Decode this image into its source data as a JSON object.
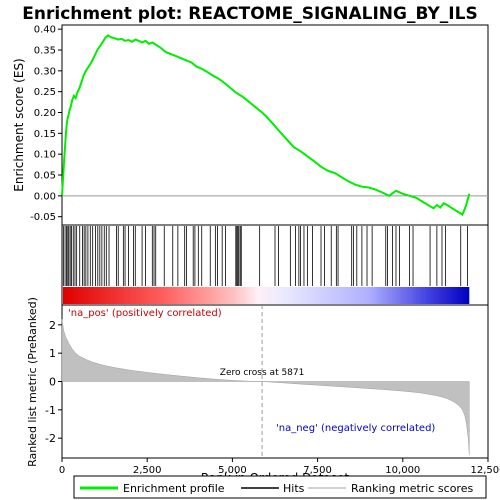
{
  "chart_data": {
    "type": "line",
    "title": "Enrichment plot: REACTOME_SIGNALING_BY_ILS",
    "xlabel": "Rank in Ordered Dataset",
    "ylabel_top": "Enrichment score (ES)",
    "ylabel_bottom": "Ranked list metric (PreRanked)",
    "xlim": [
      0,
      12500
    ],
    "x_ticks": [
      0,
      2500,
      5000,
      7500,
      10000,
      12500
    ],
    "x_tick_labels": [
      "0",
      "2,500",
      "5,000",
      "7,500",
      "10,000",
      "12,500"
    ],
    "es_ylim": [
      -0.07,
      0.41
    ],
    "es_ticks": [
      -0.05,
      0.0,
      0.05,
      0.1,
      0.15,
      0.2,
      0.25,
      0.3,
      0.35,
      0.4
    ],
    "es_tick_labels": [
      "-0.05",
      "0.00",
      "0.05",
      "0.10",
      "0.15",
      "0.20",
      "0.25",
      "0.30",
      "0.35",
      "0.40"
    ],
    "metric_ylim": [
      -2.7,
      2.7
    ],
    "metric_ticks": [
      -2,
      -1,
      0,
      1,
      2
    ],
    "metric_tick_labels": [
      "-2",
      "-1",
      "0",
      "1",
      "2"
    ],
    "es_color": "#00ff00",
    "series": [
      {
        "name": "Enrichment profile",
        "x": [
          0,
          30,
          60,
          90,
          120,
          150,
          180,
          220,
          260,
          300,
          350,
          400,
          460,
          520,
          580,
          640,
          700,
          780,
          860,
          950,
          1040,
          1120,
          1200,
          1280,
          1350,
          1450,
          1550,
          1650,
          1750,
          1850,
          1950,
          2050,
          2150,
          2250,
          2350,
          2450,
          2550,
          2650,
          2750,
          2900,
          3050,
          3200,
          3350,
          3500,
          3650,
          3800,
          3950,
          4100,
          4250,
          4400,
          4550,
          4700,
          4850,
          5000,
          5100,
          5200,
          5300,
          5450,
          5600,
          5750,
          5871,
          6000,
          6200,
          6400,
          6600,
          6800,
          7000,
          7200,
          7400,
          7600,
          7800,
          8000,
          8200,
          8400,
          8600,
          8800,
          9000,
          9200,
          9400,
          9600,
          9800,
          10000,
          10200,
          10400,
          10600,
          10800,
          10900,
          11000,
          11100,
          11200,
          11300,
          11450,
          11550,
          11650,
          11750,
          11850,
          11950
        ],
        "y": [
          0.0,
          0.04,
          0.08,
          0.12,
          0.155,
          0.18,
          0.19,
          0.205,
          0.215,
          0.23,
          0.24,
          0.235,
          0.25,
          0.26,
          0.275,
          0.29,
          0.3,
          0.31,
          0.32,
          0.335,
          0.35,
          0.36,
          0.37,
          0.38,
          0.385,
          0.38,
          0.378,
          0.375,
          0.377,
          0.372,
          0.374,
          0.37,
          0.375,
          0.372,
          0.368,
          0.372,
          0.365,
          0.368,
          0.363,
          0.355,
          0.345,
          0.34,
          0.335,
          0.33,
          0.325,
          0.32,
          0.31,
          0.305,
          0.298,
          0.29,
          0.283,
          0.275,
          0.265,
          0.255,
          0.248,
          0.243,
          0.238,
          0.228,
          0.218,
          0.208,
          0.2,
          0.19,
          0.172,
          0.153,
          0.135,
          0.117,
          0.107,
          0.095,
          0.083,
          0.07,
          0.06,
          0.055,
          0.045,
          0.035,
          0.027,
          0.022,
          0.02,
          0.015,
          0.008,
          0.0,
          0.012,
          0.005,
          0.0,
          -0.005,
          -0.015,
          -0.025,
          -0.03,
          -0.022,
          -0.028,
          -0.018,
          -0.022,
          -0.03,
          -0.035,
          -0.04,
          -0.045,
          -0.025,
          0.005
        ]
      }
    ],
    "hits": [
      40,
      90,
      130,
      170,
      200,
      240,
      280,
      330,
      380,
      430,
      520,
      600,
      650,
      700,
      760,
      830,
      900,
      980,
      1050,
      1110,
      1170,
      1240,
      1300,
      1380,
      1600,
      1650,
      1800,
      1850,
      1950,
      2100,
      2150,
      2350,
      2450,
      2650,
      2700,
      2750,
      3000,
      3250,
      3400,
      3600,
      3650,
      3850,
      3900,
      4000,
      4100,
      4350,
      4500,
      4560,
      4700,
      4800,
      5100,
      5130,
      5160,
      5190,
      5230,
      5260,
      5800,
      6250,
      6350,
      6700,
      6850,
      6950,
      7000,
      7100,
      7200,
      7350,
      7600,
      7700,
      7900,
      8050,
      8100,
      8500,
      8550,
      8650,
      8800,
      8950,
      9100,
      9500,
      9550,
      9700,
      9800,
      9900,
      10200,
      10300,
      10800,
      11000,
      11150,
      11250,
      11700,
      11900
    ],
    "zero_cross_label": "Zero cross at 5871",
    "zero_cross": 5871,
    "pos_label": "'na_pos' (positively correlated)",
    "neg_label": "'na_neg' (negatively correlated)",
    "metric": {
      "x": [
        0,
        50,
        100,
        200,
        300,
        400,
        500,
        700,
        900,
        1200,
        1500,
        2000,
        2500,
        3000,
        3500,
        4000,
        4500,
        5000,
        5500,
        5871,
        6500,
        7000,
        7500,
        8000,
        8500,
        9000,
        9500,
        10000,
        10500,
        11000,
        11300,
        11500,
        11650,
        11750,
        11820,
        11870,
        11920,
        11950
      ],
      "y": [
        2.2,
        1.8,
        1.6,
        1.35,
        1.15,
        1.0,
        0.9,
        0.78,
        0.68,
        0.58,
        0.5,
        0.4,
        0.32,
        0.25,
        0.19,
        0.13,
        0.08,
        0.04,
        0.01,
        0.0,
        -0.05,
        -0.09,
        -0.13,
        -0.17,
        -0.21,
        -0.25,
        -0.29,
        -0.34,
        -0.4,
        -0.5,
        -0.6,
        -0.72,
        -0.85,
        -1.0,
        -1.2,
        -1.5,
        -2.0,
        -2.6
      ]
    },
    "legend": [
      {
        "label": "Enrichment profile",
        "color": "#00ff00"
      },
      {
        "label": "Hits",
        "color": "#000000"
      },
      {
        "label": "Ranking metric scores",
        "color": "#c0c0c0"
      }
    ]
  }
}
